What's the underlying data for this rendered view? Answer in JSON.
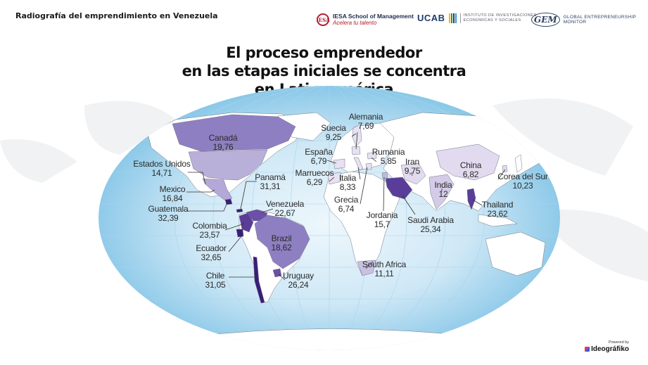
{
  "header": {
    "report_title": "Radiografía del emprendimiento en Venezuela",
    "logos": {
      "iesa_mark": "IESA",
      "iesa_name": "IESA School of Management",
      "iesa_tagline": "Acelera tu talento",
      "ucab_name": "UCAB",
      "ucab_institute_line1": "INSTITUTO DE INVESTIGACIONES",
      "ucab_institute_line2": "ECONOMICAS Y SOCIALES",
      "gem_mark": "GEM",
      "gem_name": "GLOBAL ENTREPRENEURSHIP MONITOR"
    }
  },
  "headline": {
    "line1": "El proceso emprendedor",
    "line2": "en las etapas iniciales se concentra",
    "line3": "en Latinoamérica"
  },
  "colors": {
    "ocean_center": "#e6f3fb",
    "ocean_edge": "#7fc3e6",
    "land": "#ffffff",
    "low": "#e9e3f3",
    "mid_low": "#bcb1da",
    "mid": "#9383c4",
    "high": "#6b4fa8",
    "top": "#3c1c7a"
  },
  "countries": [
    {
      "name": "Canadá",
      "value": "19,76"
    },
    {
      "name": "Estados Unidos",
      "value": "14,71"
    },
    {
      "name": "Mexico",
      "value": "16,84"
    },
    {
      "name": "Guatemala",
      "value": "32,39"
    },
    {
      "name": "Panamá",
      "value": "31,31"
    },
    {
      "name": "Venezuela",
      "value": "22,67"
    },
    {
      "name": "Colombia",
      "value": "23,57"
    },
    {
      "name": "Ecuador",
      "value": "32,65"
    },
    {
      "name": "Brazil",
      "value": "18,62"
    },
    {
      "name": "Chile",
      "value": "31,05"
    },
    {
      "name": "Uruguay",
      "value": "26,24"
    },
    {
      "name": "Suecia",
      "value": "9,25"
    },
    {
      "name": "Alemania",
      "value": "7,69"
    },
    {
      "name": "España",
      "value": "6,79"
    },
    {
      "name": "Marruecos",
      "value": "6,29"
    },
    {
      "name": "Italia",
      "value": "8,33"
    },
    {
      "name": "Grecia",
      "value": "6,74"
    },
    {
      "name": "Rumania",
      "value": "5,85"
    },
    {
      "name": "Jordania",
      "value": "15,7"
    },
    {
      "name": "Saudi Arabia",
      "value": "25,34"
    },
    {
      "name": "Iran",
      "value": "9,75"
    },
    {
      "name": "India",
      "value": "12"
    },
    {
      "name": "China",
      "value": "6,82"
    },
    {
      "name": "Corea del Sur",
      "value": "10,23"
    },
    {
      "name": "Thailand",
      "value": "23,62"
    },
    {
      "name": "South Africa",
      "value": "11,11"
    }
  ],
  "footer": {
    "powered_by": "Powered by",
    "brand": "Ideográfiko"
  }
}
